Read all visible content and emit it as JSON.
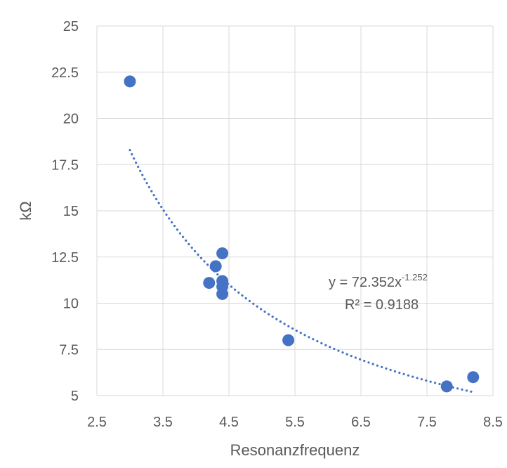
{
  "chart_data": {
    "type": "scatter",
    "xlabel": "Resonanzfrequenz",
    "ylabel": "kΩ",
    "xlim": [
      2.5,
      8.5
    ],
    "ylim": [
      5,
      25
    ],
    "x_ticks": [
      "2.5",
      "3.5",
      "4.5",
      "5.5",
      "6.5",
      "7.5",
      "8.5"
    ],
    "y_ticks": [
      "5",
      "7.5",
      "10",
      "12.5",
      "15",
      "17.5",
      "20",
      "22.5",
      "25"
    ],
    "grid": true,
    "legend": "none",
    "marker_color": "#4472C4",
    "series": [
      {
        "points": [
          {
            "x": 3.0,
            "y": 22.0
          },
          {
            "x": 4.2,
            "y": 11.1
          },
          {
            "x": 4.3,
            "y": 12.0
          },
          {
            "x": 4.4,
            "y": 12.7
          },
          {
            "x": 4.4,
            "y": 11.2
          },
          {
            "x": 4.4,
            "y": 10.9
          },
          {
            "x": 4.4,
            "y": 10.5
          },
          {
            "x": 5.4,
            "y": 8.0
          },
          {
            "x": 7.8,
            "y": 5.5
          },
          {
            "x": 8.2,
            "y": 6.0
          }
        ]
      }
    ],
    "trendline": {
      "type": "power",
      "a": 72.352,
      "b": -1.252,
      "x_range": [
        3.0,
        8.2
      ],
      "style": "dotted",
      "color": "#4472C4",
      "equation_base": "y = 72.352x",
      "equation_exponent": "-1.252",
      "r_squared_label": "R² = 0.9188"
    }
  }
}
